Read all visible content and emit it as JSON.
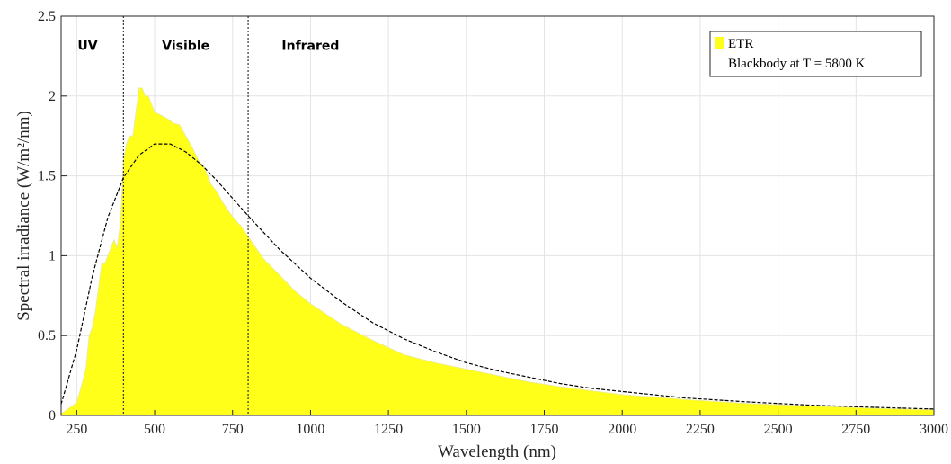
{
  "chart_data": {
    "type": "area",
    "title": "",
    "xlabel": "Wavelength (nm)",
    "ylabel": "Spectral irradiance (W/m²/nm)",
    "xlim": [
      200,
      3000
    ],
    "ylim": [
      0,
      2.5
    ],
    "xticks": [
      250,
      500,
      750,
      1000,
      1250,
      1500,
      1750,
      2000,
      2250,
      2500,
      2750,
      3000
    ],
    "yticks": [
      0,
      0.5,
      1,
      1.5,
      2,
      2.5
    ],
    "grid": true,
    "legend_position": "top-right",
    "region_boundaries": [
      400,
      800
    ],
    "region_labels": [
      {
        "text": "UV",
        "x": 285,
        "y": 2.29
      },
      {
        "text": "Visible",
        "x": 600,
        "y": 2.29
      },
      {
        "text": "Infrared",
        "x": 1000,
        "y": 2.29
      }
    ],
    "series": [
      {
        "name": "ETR",
        "style": "filled-area",
        "color": "#ffff1a",
        "x": [
          200,
          250,
          270,
          280,
          290,
          300,
          310,
          320,
          330,
          340,
          350,
          360,
          370,
          380,
          390,
          400,
          410,
          420,
          430,
          440,
          450,
          460,
          470,
          480,
          490,
          500,
          520,
          540,
          560,
          580,
          600,
          620,
          640,
          660,
          680,
          700,
          720,
          740,
          760,
          780,
          800,
          850,
          900,
          950,
          1000,
          1100,
          1200,
          1300,
          1400,
          1500,
          1600,
          1700,
          1800,
          1900,
          2000,
          2200,
          2400,
          2600,
          2800,
          3000
        ],
        "y": [
          0.01,
          0.08,
          0.22,
          0.3,
          0.5,
          0.55,
          0.65,
          0.8,
          0.95,
          0.95,
          1.0,
          1.05,
          1.1,
          1.05,
          1.2,
          1.6,
          1.7,
          1.75,
          1.75,
          1.9,
          2.05,
          2.05,
          2.0,
          2.0,
          1.95,
          1.9,
          1.88,
          1.86,
          1.83,
          1.82,
          1.75,
          1.68,
          1.6,
          1.55,
          1.45,
          1.4,
          1.33,
          1.27,
          1.22,
          1.18,
          1.12,
          0.98,
          0.88,
          0.78,
          0.7,
          0.57,
          0.47,
          0.38,
          0.33,
          0.29,
          0.25,
          0.21,
          0.18,
          0.155,
          0.13,
          0.1,
          0.075,
          0.06,
          0.045,
          0.035
        ]
      },
      {
        "name": "Blackbody at T = 5800 K",
        "style": "dashed-line",
        "color": "#000000",
        "x": [
          200,
          250,
          300,
          350,
          400,
          450,
          500,
          550,
          600,
          650,
          700,
          750,
          800,
          900,
          1000,
          1100,
          1200,
          1300,
          1400,
          1500,
          1600,
          1700,
          1800,
          1900,
          2000,
          2200,
          2400,
          2600,
          2800,
          3000
        ],
        "y": [
          0.07,
          0.41,
          0.87,
          1.24,
          1.49,
          1.63,
          1.7,
          1.7,
          1.65,
          1.57,
          1.47,
          1.36,
          1.25,
          1.04,
          0.86,
          0.71,
          0.58,
          0.48,
          0.4,
          0.33,
          0.28,
          0.24,
          0.2,
          0.17,
          0.15,
          0.11,
          0.085,
          0.065,
          0.051,
          0.04
        ]
      }
    ]
  }
}
